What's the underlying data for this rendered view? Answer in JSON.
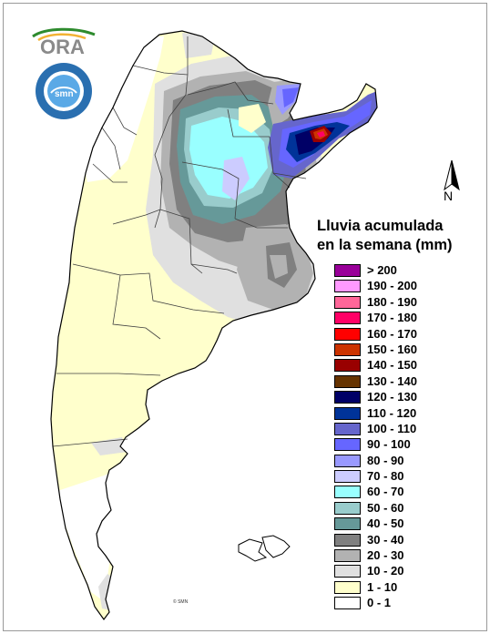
{
  "legend": {
    "title_line1": "Lluvia acumulada",
    "title_line2": "en la semana (mm)",
    "classes": [
      {
        "label": "> 200",
        "color": "#990099"
      },
      {
        "label": "190 - 200",
        "color": "#ff99ff"
      },
      {
        "label": "180 - 190",
        "color": "#ff6699"
      },
      {
        "label": "170 - 180",
        "color": "#ff0066"
      },
      {
        "label": "160 - 170",
        "color": "#ff0000"
      },
      {
        "label": "150 - 160",
        "color": "#cc3300"
      },
      {
        "label": "140 - 150",
        "color": "#990000"
      },
      {
        "label": "130 - 140",
        "color": "#663300"
      },
      {
        "label": "120 - 130",
        "color": "#000066"
      },
      {
        "label": "110 - 120",
        "color": "#003399"
      },
      {
        "label": "100 - 110",
        "color": "#6666cc"
      },
      {
        "label": "90 - 100",
        "color": "#6666ff"
      },
      {
        "label": "80 - 90",
        "color": "#9999ff"
      },
      {
        "label": "70 - 80",
        "color": "#ccccff"
      },
      {
        "label": "60 - 70",
        "color": "#99ffff"
      },
      {
        "label": "50 - 60",
        "color": "#99cccc"
      },
      {
        "label": "40 - 50",
        "color": "#669999"
      },
      {
        "label": "30 - 40",
        "color": "#808080"
      },
      {
        "label": "20 - 30",
        "color": "#b2b2b2"
      },
      {
        "label": "10 - 20",
        "color": "#e0e0e0"
      },
      {
        "label": "1 - 10",
        "color": "#ffffcc"
      },
      {
        "label": "0 - 1",
        "color": "#ffffff"
      }
    ]
  },
  "north_label": "N",
  "logos": {
    "ora_text": "ORA",
    "smn_text": "smn",
    "smn_ring_text": "SERVICIO METEOROLOGICO NACIONAL",
    "smn_country": "ARGENTINA"
  },
  "credit": "© SMN",
  "colors": {
    "border": "#000000",
    "map_base": "#ffffcc",
    "sea": "#ffffff"
  }
}
